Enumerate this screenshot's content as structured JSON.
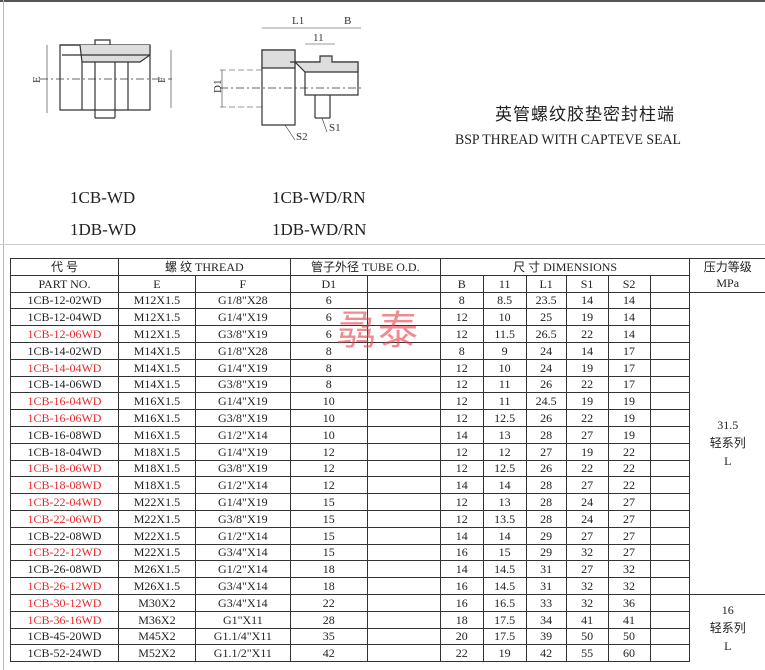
{
  "drawing": {
    "labels_left": [
      "E",
      "F"
    ],
    "labels_right": [
      "L1",
      "B",
      "11",
      "D1",
      "S2",
      "S1"
    ]
  },
  "title_cn": "英管螺纹胶垫密封柱端",
  "title_en": "BSP THREAD WITH CAPTEVE SEAL",
  "models": [
    "1CB-WD",
    "1DB-WD",
    "1CB-WD/RN",
    "1DB-WD/RN"
  ],
  "watermark": "骉泰",
  "table": {
    "header1": {
      "part": "代    号",
      "thread": "螺   纹     THREAD",
      "tube": "管子外径 TUBE O.D.",
      "dims": "尺   寸        DIMENSIONS",
      "pressure": "压力等级"
    },
    "header2": {
      "part": "PART   NO.",
      "e": "E",
      "f": "F",
      "d1": "D1",
      "b": "B",
      "l1s": "11",
      "L1": "L1",
      "s1": "S1",
      "s2": "S2",
      "pressure": "MPa"
    },
    "rows": [
      {
        "part": "1CB-12-02WD",
        "red": false,
        "e": "M12X1.5",
        "f": "G1/8\"X28",
        "d1": "6",
        "b": "8",
        "l1s": "8.5",
        "L1": "23.5",
        "s1": "14",
        "s2": "14"
      },
      {
        "part": "1CB-12-04WD",
        "red": false,
        "e": "M12X1.5",
        "f": "G1/4\"X19",
        "d1": "6",
        "b": "12",
        "l1s": "10",
        "L1": "25",
        "s1": "19",
        "s2": "14"
      },
      {
        "part": "1CB-12-06WD",
        "red": true,
        "e": "M12X1.5",
        "f": "G3/8\"X19",
        "d1": "6",
        "b": "12",
        "l1s": "11.5",
        "L1": "26.5",
        "s1": "22",
        "s2": "14"
      },
      {
        "part": "1CB-14-02WD",
        "red": false,
        "e": "M14X1.5",
        "f": "G1/8\"X28",
        "d1": "8",
        "b": "8",
        "l1s": "9",
        "L1": "24",
        "s1": "14",
        "s2": "17"
      },
      {
        "part": "1CB-14-04WD",
        "red": true,
        "e": "M14X1.5",
        "f": "G1/4\"X19",
        "d1": "8",
        "b": "12",
        "l1s": "10",
        "L1": "24",
        "s1": "19",
        "s2": "17"
      },
      {
        "part": "1CB-14-06WD",
        "red": false,
        "e": "M14X1.5",
        "f": "G3/8\"X19",
        "d1": "8",
        "b": "12",
        "l1s": "11",
        "L1": "26",
        "s1": "22",
        "s2": "17"
      },
      {
        "part": "1CB-16-04WD",
        "red": true,
        "e": "M16X1.5",
        "f": "G1/4\"X19",
        "d1": "10",
        "b": "12",
        "l1s": "11",
        "L1": "24.5",
        "s1": "19",
        "s2": "19"
      },
      {
        "part": "1CB-16-06WD",
        "red": true,
        "e": "M16X1.5",
        "f": "G3/8\"X19",
        "d1": "10",
        "b": "12",
        "l1s": "12.5",
        "L1": "26",
        "s1": "22",
        "s2": "19"
      },
      {
        "part": "1CB-16-08WD",
        "red": false,
        "e": "M16X1.5",
        "f": "G1/2\"X14",
        "d1": "10",
        "b": "14",
        "l1s": "13",
        "L1": "28",
        "s1": "27",
        "s2": "19"
      },
      {
        "part": "1CB-18-04WD",
        "red": false,
        "e": "M18X1.5",
        "f": "G1/4\"X19",
        "d1": "12",
        "b": "12",
        "l1s": "12",
        "L1": "27",
        "s1": "19",
        "s2": "22"
      },
      {
        "part": "1CB-18-06WD",
        "red": true,
        "e": "M18X1.5",
        "f": "G3/8\"X19",
        "d1": "12",
        "b": "12",
        "l1s": "12.5",
        "L1": "26",
        "s1": "22",
        "s2": "22"
      },
      {
        "part": "1CB-18-08WD",
        "red": true,
        "e": "M18X1.5",
        "f": "G1/2\"X14",
        "d1": "12",
        "b": "14",
        "l1s": "14",
        "L1": "28",
        "s1": "27",
        "s2": "22"
      },
      {
        "part": "1CB-22-04WD",
        "red": true,
        "e": "M22X1.5",
        "f": "G1/4\"X19",
        "d1": "15",
        "b": "12",
        "l1s": "13",
        "L1": "28",
        "s1": "24",
        "s2": "27"
      },
      {
        "part": "1CB-22-06WD",
        "red": true,
        "e": "M22X1.5",
        "f": "G3/8\"X19",
        "d1": "15",
        "b": "12",
        "l1s": "13.5",
        "L1": "28",
        "s1": "24",
        "s2": "27"
      },
      {
        "part": "1CB-22-08WD",
        "red": false,
        "e": "M22X1.5",
        "f": "G1/2\"X14",
        "d1": "15",
        "b": "14",
        "l1s": "14",
        "L1": "29",
        "s1": "27",
        "s2": "27"
      },
      {
        "part": "1CB-22-12WD",
        "red": true,
        "e": "M22X1.5",
        "f": "G3/4\"X14",
        "d1": "15",
        "b": "16",
        "l1s": "15",
        "L1": "29",
        "s1": "32",
        "s2": "27"
      },
      {
        "part": "1CB-26-08WD",
        "red": false,
        "e": "M26X1.5",
        "f": "G1/2\"X14",
        "d1": "18",
        "b": "14",
        "l1s": "14.5",
        "L1": "31",
        "s1": "27",
        "s2": "32"
      },
      {
        "part": "1CB-26-12WD",
        "red": true,
        "e": "M26X1.5",
        "f": "G3/4\"X14",
        "d1": "18",
        "b": "16",
        "l1s": "14.5",
        "L1": "31",
        "s1": "32",
        "s2": "32"
      },
      {
        "part": "1CB-30-12WD",
        "red": true,
        "e": "M30X2",
        "f": "G3/4\"X14",
        "d1": "22",
        "b": "16",
        "l1s": "16.5",
        "L1": "33",
        "s1": "32",
        "s2": "36"
      },
      {
        "part": "1CB-36-16WD",
        "red": true,
        "e": "M36X2",
        "f": "G1\"X11",
        "d1": "28",
        "b": "18",
        "l1s": "17.5",
        "L1": "34",
        "s1": "41",
        "s2": "41"
      },
      {
        "part": "1CB-45-20WD",
        "red": false,
        "e": "M45X2",
        "f": "G1.1/4\"X11",
        "d1": "35",
        "b": "20",
        "l1s": "17.5",
        "L1": "39",
        "s1": "50",
        "s2": "50"
      },
      {
        "part": "1CB-52-24WD",
        "red": false,
        "e": "M52X2",
        "f": "G1.1/2\"X11",
        "d1": "42",
        "b": "22",
        "l1s": "19",
        "L1": "42",
        "s1": "55",
        "s2": "60"
      }
    ],
    "pressure_groups": [
      {
        "rows": 18,
        "value": "31.5",
        "series": "轻系列",
        "code": "L"
      },
      {
        "rows": 4,
        "value": "16",
        "series": "轻系列",
        "code": "L"
      }
    ]
  },
  "colors": {
    "red_part": "#e8282c",
    "watermark": "#e83c46"
  }
}
